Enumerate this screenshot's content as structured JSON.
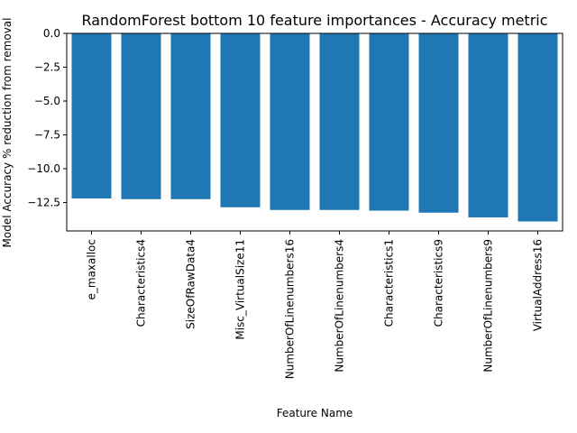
{
  "chart_data": {
    "type": "bar",
    "title": "RandomForest bottom 10 feature importances - Accuracy metric",
    "xlabel": "Feature Name",
    "ylabel": "Model Accuracy % reduction from removal",
    "categories": [
      "e_maxalloc",
      "Characteristics4",
      "SizeOfRawData4",
      "Misc_VirtualSize11",
      "NumberOfLinenumbers16",
      "NumberOfLinenumbers4",
      "Characteristics1",
      "Characteristics9",
      "NumberOfLinenumbers9",
      "VirtualAddress16"
    ],
    "values": [
      -12.2,
      -12.25,
      -12.25,
      -12.85,
      -13.05,
      -13.05,
      -13.1,
      -13.25,
      -13.6,
      -13.9
    ],
    "ylim": [
      -14.6,
      0
    ],
    "yticks": [
      0,
      -2.5,
      -5,
      -7.5,
      -10,
      -12.5
    ],
    "ytick_labels": [
      "0.0",
      "−2.5",
      "−5.0",
      "−7.5",
      "−10.0",
      "−12.5"
    ],
    "bar_color": "#1f77b4",
    "grid": false
  }
}
